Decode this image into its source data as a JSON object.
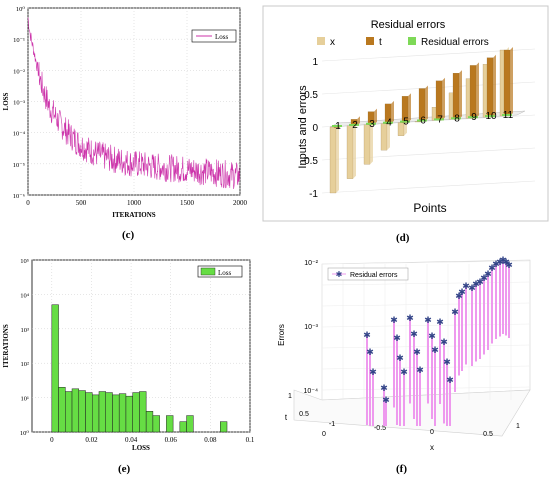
{
  "captions": {
    "c": "(c)",
    "d": "(d)",
    "e": "(e)",
    "f": "(f)"
  },
  "chart_data": [
    {
      "id": "c",
      "type": "line",
      "xlabel": "ITERATIONS",
      "ylabel": "LOSS",
      "y_scale": "log",
      "xlim": [
        0,
        2000
      ],
      "ylim": [
        1e-06,
        1
      ],
      "xticks": [
        "0",
        "500",
        "1000",
        "1500",
        "2000"
      ],
      "yticks": [
        "10⁻⁶",
        "10⁻⁵",
        "10⁻⁴",
        "10⁻³",
        "10⁻²",
        "10⁻¹",
        "10⁰"
      ],
      "legend": {
        "position": "top-right",
        "entries": [
          "Loss"
        ]
      },
      "color": "#cc33aa",
      "x": [
        0,
        20,
        50,
        100,
        150,
        200,
        300,
        400,
        500,
        600,
        700,
        800,
        900,
        1000,
        1100,
        1200,
        1300,
        1400,
        1500,
        1600,
        1700,
        1800,
        1900,
        2000
      ],
      "y": [
        0.5,
        0.15,
        0.05,
        0.008,
        0.002,
        0.0007,
        0.0002,
        8e-05,
        4e-05,
        2.5e-05,
        1.8e-05,
        1.4e-05,
        1.2e-05,
        1e-05,
        9e-06,
        8e-06,
        7.5e-06,
        7e-06,
        6.5e-06,
        6e-06,
        5.5e-06,
        5e-06,
        4.5e-06,
        4e-06
      ]
    },
    {
      "id": "d",
      "type": "bar",
      "title": "Residual errors",
      "xlabel": "Points",
      "ylabel": "Inputs and errors",
      "categories": [
        "1",
        "2",
        "3",
        "4",
        "5",
        "6",
        "7",
        "8",
        "9",
        "10",
        "11"
      ],
      "yticks": [
        "-1",
        "-0.5",
        "0",
        "0.5",
        "1"
      ],
      "ylim": [
        -1,
        1
      ],
      "legend": {
        "position": "top",
        "entries": [
          "x",
          "t",
          "Residual errors"
        ]
      },
      "series": [
        {
          "name": "x",
          "color": "#e6cf9a",
          "values": [
            -1,
            -0.8,
            -0.6,
            -0.4,
            -0.2,
            0,
            0.2,
            0.4,
            0.6,
            0.8,
            1
          ]
        },
        {
          "name": "t",
          "color": "#b9781f",
          "values": [
            0,
            0.1,
            0.2,
            0.3,
            0.4,
            0.5,
            0.6,
            0.7,
            0.8,
            0.9,
            1
          ]
        },
        {
          "name": "Residual errors",
          "color": "#7ed957",
          "values": [
            0.002,
            0.002,
            0.002,
            0.002,
            0.002,
            0.002,
            0.002,
            0.002,
            0.002,
            0.002,
            0.002
          ]
        }
      ]
    },
    {
      "id": "e",
      "type": "bar",
      "xlabel": "LOSS",
      "ylabel": "ITERATIONS",
      "y_scale": "log",
      "xlim": [
        -0.01,
        0.1
      ],
      "ylim": [
        1,
        100000
      ],
      "xticks": [
        "0",
        "0.02",
        "0.04",
        "0.06",
        "0.08",
        "0.1"
      ],
      "yticks": [
        "10⁰",
        "10¹",
        "10²",
        "10³",
        "10⁴",
        "10⁵"
      ],
      "legend": {
        "position": "top-right",
        "entries": [
          "Loss"
        ]
      },
      "color": "#66dd44",
      "bin_width": 0.0034,
      "bins": [
        0.0,
        0.0034,
        0.0068,
        0.0102,
        0.0136,
        0.017,
        0.0204,
        0.0238,
        0.0272,
        0.0306,
        0.034,
        0.0374,
        0.0408,
        0.0442,
        0.0476,
        0.051,
        0.0578,
        0.0646,
        0.068,
        0.085
      ],
      "values": [
        5000,
        20,
        15,
        18,
        16,
        14,
        12,
        15,
        14,
        12,
        13,
        11,
        14,
        15,
        4,
        3,
        3,
        2,
        3,
        2
      ]
    },
    {
      "id": "f",
      "type": "scatter",
      "legend": {
        "position": "top-left",
        "entries": [
          "Residual errors"
        ]
      },
      "xlabel": "x",
      "ylabel": "t",
      "zlabel": "Errors",
      "z_scale": "log",
      "xticks": [
        "-1",
        "-0.5",
        "0",
        "0.5",
        "1"
      ],
      "yticks": [
        "0",
        "0.5",
        "1"
      ],
      "zticks": [
        "10⁻⁴",
        "10⁻³",
        "10⁻²"
      ],
      "color": "#334488",
      "stem_color": "#ee99ee",
      "points_px": "projected"
    }
  ]
}
